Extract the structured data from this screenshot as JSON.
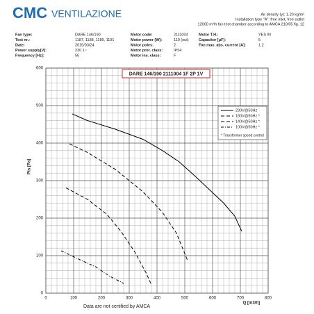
{
  "header": {
    "brand": "CMC",
    "brand_sub": "VENTILAZIONE",
    "notes": [
      "Air density (γ): 1.20 kg/m³",
      "Installation type \"A\": free inlet, free outlet",
      "12000 m³/h fan test chamber according to AMCA 210/05 fig. 12"
    ]
  },
  "info": [
    [
      [
        "Fan type:",
        "DARE 146/190"
      ],
      [
        "Test nr.:",
        "1187, 1188, 1189, 1191"
      ],
      [
        "Date:",
        "2015/03/24"
      ],
      [
        "Power supply[V]:",
        "230 1~"
      ],
      [
        "Frequency [Hz]:",
        "50"
      ]
    ],
    [
      [
        "Motor code:",
        "2111004"
      ],
      [
        "Motor power [W]:",
        "110 (out)"
      ],
      [
        "Motor poles:",
        "2"
      ],
      [
        "Motor prot. class:",
        "IP54"
      ],
      [
        "Motor ins. class:",
        "F"
      ]
    ],
    [
      [
        "Motor T.H.:",
        "YES IN"
      ],
      [
        "Capacitor [μF]:",
        "5"
      ],
      [
        "Fan max. abs. current [A]:",
        "1.2"
      ]
    ]
  ],
  "footer": "Data are not certified by AMCA",
  "chart_data": {
    "type": "line",
    "title": "DARE 146/190 2111004 1F 2P 1V",
    "x_label": "Q [m3/h]",
    "y_label": "Pts [Pa]",
    "xlim": [
      0,
      800
    ],
    "xticks": [
      0,
      100,
      200,
      300,
      400,
      500,
      600,
      700,
      800
    ],
    "ylim": [
      0,
      600
    ],
    "yticks": [
      0,
      100,
      200,
      300,
      400,
      500,
      600
    ],
    "grid": true,
    "legend": "upper right",
    "legend_note": "* Transformer speed control",
    "series": [
      {
        "name": "230V@50Hz",
        "color": "#000000",
        "dash": "solid",
        "x": [
          95,
          150,
          250,
          350,
          420,
          480,
          540,
          590,
          640,
          680,
          705
        ],
        "values": [
          478,
          460,
          437,
          410,
          380,
          350,
          310,
          275,
          240,
          205,
          165
        ]
      },
      {
        "name": "180V@50Hz *",
        "color": "#000000",
        "dash": "dashed",
        "x": [
          85,
          150,
          250,
          350,
          420,
          470,
          510
        ],
        "values": [
          398,
          375,
          330,
          270,
          215,
          160,
          87
        ]
      },
      {
        "name": "140V@50Hz *",
        "color": "#000000",
        "dash": "dashed",
        "x": [
          72,
          150,
          220,
          270,
          320,
          360,
          380
        ],
        "values": [
          281,
          250,
          210,
          165,
          110,
          55,
          22
        ]
      },
      {
        "name": "100V@50Hz *",
        "color": "#000000",
        "dash": "dashdot",
        "x": [
          55,
          120,
          180,
          230,
          280
        ],
        "values": [
          113,
          90,
          70,
          45,
          26
        ]
      }
    ]
  }
}
